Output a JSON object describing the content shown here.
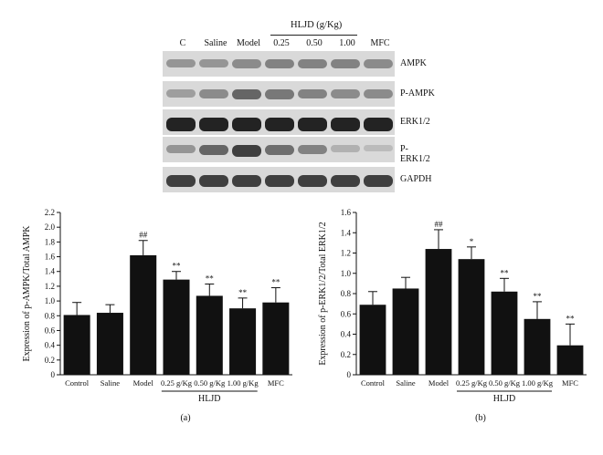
{
  "blot": {
    "group_label": "HLJD (g/Kg)",
    "lanes": [
      "C",
      "Saline",
      "Model",
      "0.25",
      "0.50",
      "1.00",
      "MFC"
    ],
    "rows": [
      {
        "name": "AMPK",
        "intensity": [
          0.35,
          0.35,
          0.4,
          0.45,
          0.45,
          0.45,
          0.4
        ]
      },
      {
        "name": "P-AMPK",
        "intensity": [
          0.3,
          0.4,
          0.6,
          0.5,
          0.45,
          0.4,
          0.4
        ]
      },
      {
        "name": "ERK1/2",
        "intensity": [
          0.95,
          0.95,
          0.95,
          0.95,
          0.95,
          0.95,
          0.95
        ]
      },
      {
        "name": "P-ERK1/2",
        "intensity": [
          0.35,
          0.6,
          0.8,
          0.55,
          0.45,
          0.2,
          0.15
        ]
      },
      {
        "name": "GAPDH",
        "intensity": [
          0.8,
          0.8,
          0.8,
          0.8,
          0.8,
          0.8,
          0.8
        ]
      }
    ]
  },
  "chart_data": [
    {
      "type": "bar",
      "panel_label": "(a)",
      "ylabel": "Expression of p-AMPK/Total AMPK",
      "ylim": [
        0,
        2.2
      ],
      "yticks": [
        "0",
        "0.2",
        "0.4",
        "0.6",
        "0.8",
        "1.0",
        "1.2",
        "1.4",
        "1.6",
        "1.8",
        "2.0",
        "2.2"
      ],
      "categories": [
        "Control",
        "Saline",
        "Model",
        "0.25 g/Kg",
        "0.50 g/Kg",
        "1.00 g/Kg",
        "MFC"
      ],
      "values": [
        0.81,
        0.84,
        1.62,
        1.29,
        1.07,
        0.9,
        0.98
      ],
      "errors": [
        0.17,
        0.11,
        0.2,
        0.11,
        0.16,
        0.14,
        0.2
      ],
      "annotations": [
        "",
        "",
        "##",
        "**",
        "**",
        "**",
        "**"
      ],
      "group_label": "HLJD"
    },
    {
      "type": "bar",
      "panel_label": "(b)",
      "ylabel": "Expression of p-ERK1/2/Total ERK1/2",
      "ylim": [
        0,
        1.6
      ],
      "yticks": [
        "0",
        "0.2",
        "0.4",
        "0.6",
        "0.8",
        "1.0",
        "1.2",
        "1.4",
        "1.6"
      ],
      "categories": [
        "Control",
        "Saline",
        "Model",
        "0.25 g/Kg",
        "0.50 g/Kg",
        "1.00 g/Kg",
        "MFC"
      ],
      "values": [
        0.69,
        0.85,
        1.24,
        1.14,
        0.82,
        0.55,
        0.29
      ],
      "errors": [
        0.13,
        0.11,
        0.19,
        0.12,
        0.13,
        0.17,
        0.21
      ],
      "annotations": [
        "",
        "",
        "##",
        "*",
        "**",
        "**",
        "**"
      ],
      "group_label": "HLJD"
    }
  ]
}
